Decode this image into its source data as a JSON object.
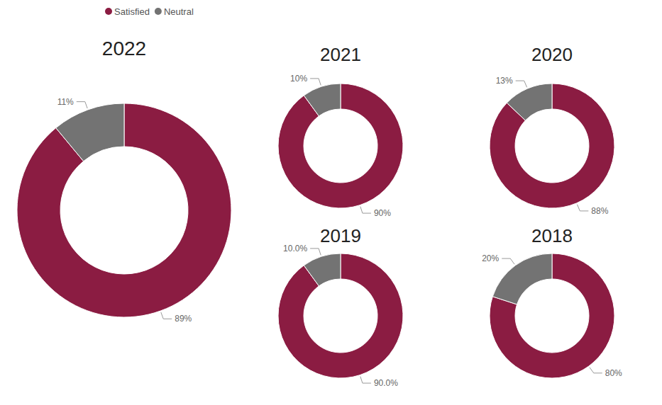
{
  "chart_data": [
    {
      "type": "donut",
      "title": "2022",
      "categories": [
        "Satisfied",
        "Neutral"
      ],
      "values": [
        89,
        11
      ],
      "value_labels": [
        "89%",
        "11%"
      ],
      "colors": [
        "#8b1c42",
        "#737373"
      ],
      "data_labels": true,
      "legend": "top-left"
    },
    {
      "type": "donut",
      "title": "2021",
      "categories": [
        "Satisfied",
        "Neutral"
      ],
      "values": [
        90,
        10
      ],
      "value_labels": [
        "90%",
        "10%"
      ],
      "colors": [
        "#8b1c42",
        "#737373"
      ],
      "data_labels": true
    },
    {
      "type": "donut",
      "title": "2020",
      "categories": [
        "Satisfied",
        "Neutral"
      ],
      "values": [
        88,
        13
      ],
      "value_labels": [
        "88%",
        "13%"
      ],
      "colors": [
        "#8b1c42",
        "#737373"
      ],
      "data_labels": true
    },
    {
      "type": "donut",
      "title": "2019",
      "categories": [
        "Satisfied",
        "Neutral"
      ],
      "values": [
        90.0,
        10.0
      ],
      "value_labels": [
        "90.0%",
        "10.0%"
      ],
      "colors": [
        "#8b1c42",
        "#737373"
      ],
      "data_labels": true
    },
    {
      "type": "donut",
      "title": "2018",
      "categories": [
        "Satisfied",
        "Neutral"
      ],
      "values": [
        80,
        20
      ],
      "value_labels": [
        "80%",
        "20%"
      ],
      "colors": [
        "#8b1c42",
        "#737373"
      ],
      "data_labels": true
    }
  ]
}
